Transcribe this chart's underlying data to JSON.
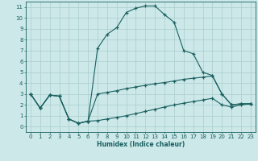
{
  "xlabel": "Humidex (Indice chaleur)",
  "ylabel": "",
  "background_color": "#cce8e8",
  "grid_color": "#aacece",
  "line_color": "#1a5f5f",
  "xlim": [
    -0.5,
    23.5
  ],
  "ylim": [
    -0.5,
    11.5
  ],
  "xticks": [
    0,
    1,
    2,
    3,
    4,
    5,
    6,
    7,
    8,
    9,
    10,
    11,
    12,
    13,
    14,
    15,
    16,
    17,
    18,
    19,
    20,
    21,
    22,
    23
  ],
  "yticks": [
    0,
    1,
    2,
    3,
    4,
    5,
    6,
    7,
    8,
    9,
    10,
    11
  ],
  "series1_x": [
    0,
    1,
    2,
    3,
    4,
    5,
    6,
    7,
    8,
    9,
    10,
    11,
    12,
    13,
    14,
    15,
    16,
    17,
    18,
    19,
    20,
    21,
    22,
    23
  ],
  "series1_y": [
    3.0,
    1.7,
    2.9,
    2.8,
    0.7,
    0.3,
    0.5,
    7.2,
    8.5,
    9.1,
    10.5,
    10.9,
    11.1,
    11.1,
    10.3,
    9.6,
    7.0,
    6.7,
    5.0,
    4.7,
    3.0,
    2.0,
    2.1,
    2.1
  ],
  "series2_x": [
    0,
    1,
    2,
    3,
    4,
    5,
    6,
    7,
    8,
    9,
    10,
    11,
    12,
    13,
    14,
    15,
    16,
    17,
    18,
    19,
    20,
    21,
    22,
    23
  ],
  "series2_y": [
    3.0,
    1.7,
    2.9,
    2.8,
    0.7,
    0.3,
    0.5,
    3.0,
    3.15,
    3.3,
    3.5,
    3.65,
    3.8,
    3.95,
    4.05,
    4.2,
    4.35,
    4.45,
    4.55,
    4.65,
    3.0,
    2.0,
    2.1,
    2.1
  ],
  "series3_x": [
    0,
    1,
    2,
    3,
    4,
    5,
    6,
    7,
    8,
    9,
    10,
    11,
    12,
    13,
    14,
    15,
    16,
    17,
    18,
    19,
    20,
    21,
    22,
    23
  ],
  "series3_y": [
    3.0,
    1.7,
    2.9,
    2.8,
    0.7,
    0.3,
    0.5,
    0.55,
    0.7,
    0.85,
    1.0,
    1.2,
    1.4,
    1.6,
    1.8,
    2.0,
    2.15,
    2.3,
    2.45,
    2.6,
    2.0,
    1.8,
    2.0,
    2.1
  ]
}
